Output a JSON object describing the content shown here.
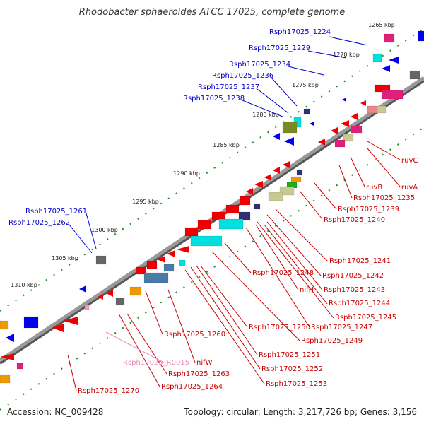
{
  "title": "Rhodobacter sphaeroides ATCC 17025, complete genome",
  "accession": "Accession: NC_009428",
  "topology": "Topology: circular; Length: 3,217,726 bp; Genes: 3,156",
  "colors": {
    "backbone": "#808080",
    "tick": "#228b22",
    "forward_label": "#0000cc",
    "reverse_label": "#cc0000",
    "rna_label": "#ee88bb",
    "gene_red": "#ee0000",
    "gene_blue": "#0000ee",
    "gene_cyan": "#00e0e0",
    "gene_magenta": "#e0207a",
    "gene_orange": "#ee9900",
    "gene_olive": "#7a8a20",
    "gene_navy": "#303070",
    "gene_steel": "#4a7aa8",
    "gene_gray": "#666666",
    "gene_khaki": "#c8c890",
    "gene_pink": "#ff9bc0",
    "gene_salmon": "#e8888a",
    "gene_green": "#22aa22"
  },
  "position_labels": [
    "1265 kbp",
    "1270 kbp",
    "1275 kbp",
    "1280 kbp",
    "1285 kbp",
    "1290 kbp",
    "1295 kbp",
    "1300 kbp",
    "1305 kbp",
    "1310 kbp"
  ],
  "forward_genes": [
    "Rsph17025_1224",
    "Rsph17025_1229",
    "Rsph17025_1234",
    "Rsph17025_1236",
    "Rsph17025_1237",
    "Rsph17025_1238",
    "Rsph17025_1261",
    "Rsph17025_1262"
  ],
  "reverse_genes": [
    "ruvC",
    "ruvA",
    "ruvB",
    "Rsph17025_1235",
    "Rsph17025_1239",
    "Rsph17025_1240",
    "Rsph17025_1241",
    "Rsph17025_1242",
    "Rsph17025_1243",
    "Rsph17025_1244",
    "Rsph17025_1245",
    "Rsph17025_1247",
    "Rsph17025_1248",
    "nifH",
    "Rsph17025_1249",
    "Rsph17025_1250",
    "Rsph17025_1251",
    "Rsph17025_1252",
    "Rsph17025_1253",
    "Rsph17025_1260",
    "nifW",
    "Rsph17025_1263",
    "Rsph17025_1264",
    "Rsph17025_1270"
  ],
  "rna_genes": [
    "Rsph17025_R0015"
  ]
}
